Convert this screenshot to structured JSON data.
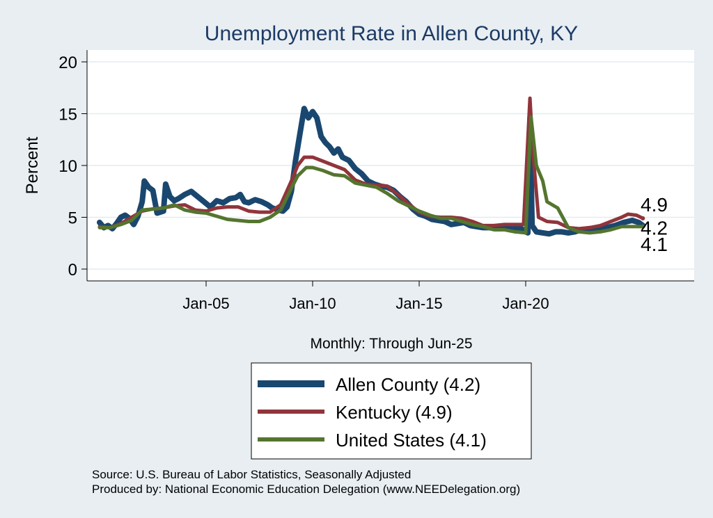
{
  "chart_data": {
    "type": "line",
    "title": "Unemployment Rate in Allen  County, KY",
    "ylabel": "Percent",
    "xlabel": "Monthly: Through Jun-25",
    "ylim": [
      0,
      20
    ],
    "yticks": [
      "0",
      "5",
      "10",
      "15",
      "20"
    ],
    "xticks": [
      {
        "label": "Jan-05",
        "x": 2005
      },
      {
        "label": "Jan-10",
        "x": 2010
      },
      {
        "label": "Jan-15",
        "x": 2015
      },
      {
        "label": "Jan-20",
        "x": 2020
      }
    ],
    "grid": true,
    "legend_position": "bottom",
    "series": [
      {
        "name": "Allen  County (4.2)",
        "color": "#1a476f",
        "end_label": "4.2",
        "points": [
          [
            2000.0,
            4.5
          ],
          [
            2000.2,
            4.0
          ],
          [
            2000.4,
            4.2
          ],
          [
            2000.6,
            3.9
          ],
          [
            2000.8,
            4.4
          ],
          [
            2001.0,
            5.0
          ],
          [
            2001.2,
            5.2
          ],
          [
            2001.4,
            4.9
          ],
          [
            2001.6,
            4.3
          ],
          [
            2001.8,
            5.1
          ],
          [
            2002.0,
            6.5
          ],
          [
            2002.1,
            8.5
          ],
          [
            2002.3,
            7.9
          ],
          [
            2002.5,
            7.6
          ],
          [
            2002.7,
            5.4
          ],
          [
            2003.0,
            5.6
          ],
          [
            2003.1,
            8.2
          ],
          [
            2003.3,
            7.0
          ],
          [
            2003.5,
            6.6
          ],
          [
            2003.7,
            6.8
          ],
          [
            2004.0,
            7.2
          ],
          [
            2004.3,
            7.5
          ],
          [
            2004.6,
            7.0
          ],
          [
            2004.9,
            6.5
          ],
          [
            2005.2,
            6.0
          ],
          [
            2005.5,
            6.6
          ],
          [
            2005.8,
            6.4
          ],
          [
            2006.1,
            6.8
          ],
          [
            2006.4,
            6.9
          ],
          [
            2006.6,
            7.2
          ],
          [
            2006.8,
            6.5
          ],
          [
            2007.0,
            6.4
          ],
          [
            2007.3,
            6.7
          ],
          [
            2007.6,
            6.5
          ],
          [
            2007.9,
            6.2
          ],
          [
            2008.1,
            5.9
          ],
          [
            2008.4,
            5.7
          ],
          [
            2008.6,
            5.6
          ],
          [
            2008.8,
            6.0
          ],
          [
            2009.0,
            7.5
          ],
          [
            2009.2,
            10.5
          ],
          [
            2009.4,
            13.0
          ],
          [
            2009.6,
            15.5
          ],
          [
            2009.8,
            14.6
          ],
          [
            2010.0,
            15.2
          ],
          [
            2010.2,
            14.6
          ],
          [
            2010.4,
            12.8
          ],
          [
            2010.6,
            12.2
          ],
          [
            2010.8,
            11.8
          ],
          [
            2011.0,
            11.2
          ],
          [
            2011.2,
            11.6
          ],
          [
            2011.4,
            10.8
          ],
          [
            2011.7,
            10.5
          ],
          [
            2012.0,
            9.7
          ],
          [
            2012.3,
            9.2
          ],
          [
            2012.6,
            8.5
          ],
          [
            2012.9,
            8.2
          ],
          [
            2013.2,
            8.0
          ],
          [
            2013.5,
            7.9
          ],
          [
            2013.8,
            7.6
          ],
          [
            2014.1,
            7.0
          ],
          [
            2014.4,
            6.5
          ],
          [
            2014.7,
            5.8
          ],
          [
            2015.0,
            5.3
          ],
          [
            2015.3,
            5.1
          ],
          [
            2015.6,
            4.8
          ],
          [
            2015.9,
            4.7
          ],
          [
            2016.2,
            4.6
          ],
          [
            2016.5,
            4.3
          ],
          [
            2016.8,
            4.4
          ],
          [
            2017.1,
            4.5
          ],
          [
            2017.4,
            4.2
          ],
          [
            2017.7,
            4.1
          ],
          [
            2018.0,
            4.0
          ],
          [
            2018.3,
            4.0
          ],
          [
            2018.6,
            3.9
          ],
          [
            2018.9,
            3.9
          ],
          [
            2019.2,
            4.0
          ],
          [
            2019.5,
            4.0
          ],
          [
            2019.8,
            3.9
          ],
          [
            2020.0,
            3.6
          ],
          [
            2020.1,
            3.5
          ],
          [
            2020.2,
            14.5
          ],
          [
            2020.3,
            4.2
          ],
          [
            2020.5,
            3.6
          ],
          [
            2020.8,
            3.5
          ],
          [
            2021.1,
            3.4
          ],
          [
            2021.4,
            3.6
          ],
          [
            2021.7,
            3.6
          ],
          [
            2022.0,
            3.5
          ],
          [
            2022.3,
            3.6
          ],
          [
            2022.6,
            3.8
          ],
          [
            2023.0,
            3.9
          ],
          [
            2023.4,
            4.0
          ],
          [
            2023.8,
            4.0
          ],
          [
            2024.2,
            4.2
          ],
          [
            2024.6,
            4.5
          ],
          [
            2025.0,
            4.7
          ],
          [
            2025.3,
            4.5
          ],
          [
            2025.5,
            4.2
          ]
        ]
      },
      {
        "name": "Kentucky (4.9)",
        "color": "#90353b",
        "end_label": "4.9",
        "points": [
          [
            2000.0,
            4.1
          ],
          [
            2000.5,
            4.0
          ],
          [
            2001.0,
            4.4
          ],
          [
            2001.5,
            5.0
          ],
          [
            2002.0,
            5.6
          ],
          [
            2002.5,
            5.8
          ],
          [
            2003.0,
            5.9
          ],
          [
            2003.5,
            6.1
          ],
          [
            2004.0,
            6.2
          ],
          [
            2004.5,
            5.7
          ],
          [
            2005.0,
            5.6
          ],
          [
            2005.5,
            5.9
          ],
          [
            2006.0,
            6.0
          ],
          [
            2006.5,
            6.0
          ],
          [
            2007.0,
            5.6
          ],
          [
            2007.5,
            5.5
          ],
          [
            2008.0,
            5.5
          ],
          [
            2008.5,
            6.2
          ],
          [
            2009.0,
            8.5
          ],
          [
            2009.3,
            10.0
          ],
          [
            2009.6,
            10.8
          ],
          [
            2010.0,
            10.8
          ],
          [
            2010.5,
            10.4
          ],
          [
            2011.0,
            10.0
          ],
          [
            2011.5,
            9.6
          ],
          [
            2012.0,
            8.6
          ],
          [
            2012.5,
            8.2
          ],
          [
            2013.0,
            8.1
          ],
          [
            2013.5,
            8.0
          ],
          [
            2014.0,
            7.2
          ],
          [
            2014.5,
            6.3
          ],
          [
            2015.0,
            5.5
          ],
          [
            2015.5,
            5.1
          ],
          [
            2016.0,
            5.0
          ],
          [
            2016.5,
            5.0
          ],
          [
            2017.0,
            4.9
          ],
          [
            2017.5,
            4.6
          ],
          [
            2018.0,
            4.2
          ],
          [
            2018.5,
            4.2
          ],
          [
            2019.0,
            4.3
          ],
          [
            2019.5,
            4.3
          ],
          [
            2019.9,
            4.3
          ],
          [
            2020.2,
            16.5
          ],
          [
            2020.35,
            11.0
          ],
          [
            2020.6,
            5.0
          ],
          [
            2021.0,
            4.6
          ],
          [
            2021.5,
            4.5
          ],
          [
            2022.0,
            4.0
          ],
          [
            2022.5,
            3.9
          ],
          [
            2023.0,
            4.0
          ],
          [
            2023.5,
            4.2
          ],
          [
            2024.0,
            4.6
          ],
          [
            2024.5,
            5.0
          ],
          [
            2024.8,
            5.3
          ],
          [
            2025.2,
            5.2
          ],
          [
            2025.5,
            4.9
          ]
        ]
      },
      {
        "name": "United States (4.1)",
        "color": "#55752f",
        "end_label": "4.1",
        "points": [
          [
            2000.0,
            4.0
          ],
          [
            2000.5,
            4.0
          ],
          [
            2001.0,
            4.3
          ],
          [
            2001.5,
            4.7
          ],
          [
            2002.0,
            5.7
          ],
          [
            2002.5,
            5.8
          ],
          [
            2003.0,
            5.9
          ],
          [
            2003.5,
            6.2
          ],
          [
            2004.0,
            5.7
          ],
          [
            2004.5,
            5.5
          ],
          [
            2005.0,
            5.4
          ],
          [
            2005.5,
            5.1
          ],
          [
            2006.0,
            4.8
          ],
          [
            2006.5,
            4.7
          ],
          [
            2007.0,
            4.6
          ],
          [
            2007.5,
            4.6
          ],
          [
            2008.0,
            5.0
          ],
          [
            2008.5,
            5.7
          ],
          [
            2009.0,
            7.8
          ],
          [
            2009.3,
            9.0
          ],
          [
            2009.7,
            9.8
          ],
          [
            2010.0,
            9.8
          ],
          [
            2010.5,
            9.5
          ],
          [
            2011.0,
            9.1
          ],
          [
            2011.5,
            9.0
          ],
          [
            2012.0,
            8.3
          ],
          [
            2012.5,
            8.1
          ],
          [
            2013.0,
            7.9
          ],
          [
            2013.5,
            7.3
          ],
          [
            2014.0,
            6.6
          ],
          [
            2014.5,
            6.1
          ],
          [
            2015.0,
            5.6
          ],
          [
            2015.5,
            5.2
          ],
          [
            2016.0,
            4.9
          ],
          [
            2016.5,
            4.9
          ],
          [
            2017.0,
            4.6
          ],
          [
            2017.5,
            4.3
          ],
          [
            2018.0,
            4.1
          ],
          [
            2018.5,
            3.8
          ],
          [
            2019.0,
            3.8
          ],
          [
            2019.5,
            3.6
          ],
          [
            2020.0,
            3.5
          ],
          [
            2020.25,
            14.7
          ],
          [
            2020.5,
            10.0
          ],
          [
            2020.8,
            8.5
          ],
          [
            2021.0,
            6.5
          ],
          [
            2021.5,
            5.9
          ],
          [
            2022.0,
            4.0
          ],
          [
            2022.5,
            3.6
          ],
          [
            2023.0,
            3.5
          ],
          [
            2023.5,
            3.6
          ],
          [
            2024.0,
            3.8
          ],
          [
            2024.5,
            4.1
          ],
          [
            2025.0,
            4.1
          ],
          [
            2025.5,
            4.1
          ]
        ]
      }
    ],
    "end_labels": [
      {
        "text": "4.9",
        "y": 4.9
      },
      {
        "text": "4.2",
        "y": 4.2
      },
      {
        "text": "4.1",
        "y": 4.1
      }
    ]
  },
  "source_line1": "Source: U.S. Bureau of Labor Statistics, Seasonally Adjusted",
  "source_line2": "Produced by: National Economic Education Delegation (www.NEEDelegation.org)"
}
